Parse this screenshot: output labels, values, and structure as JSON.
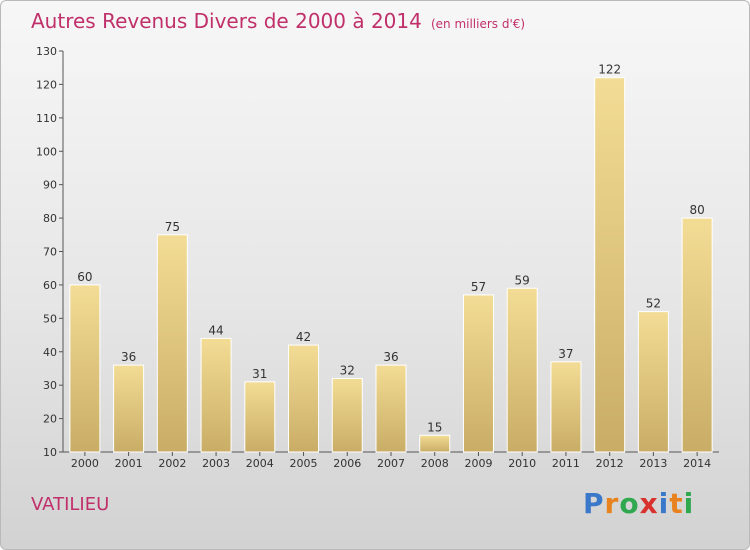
{
  "title": "Autres Revenus Divers de 2000 à 2014",
  "unit": "(en milliers d'€)",
  "place": "VATILIEU",
  "logo": {
    "letters": [
      "P",
      "r",
      "o",
      "x",
      "i",
      "t",
      "i"
    ],
    "colors": [
      "#3a78c9",
      "#e8821e",
      "#2fa84f",
      "#d9322e",
      "#3a78c9",
      "#e8821e",
      "#2fa84f"
    ]
  },
  "colors": {
    "title": "#c0306a",
    "bar_light": "#f3dc95",
    "bar_dark": "#c9ad66",
    "axis": "#555555"
  },
  "chart_data": {
    "type": "bar",
    "title": "Autres Revenus Divers de 2000 à 2014",
    "categories": [
      "2000",
      "2001",
      "2002",
      "2003",
      "2004",
      "2005",
      "2006",
      "2007",
      "2008",
      "2009",
      "2010",
      "2011",
      "2012",
      "2013",
      "2014"
    ],
    "values": [
      60,
      36,
      75,
      44,
      31,
      42,
      32,
      36,
      15,
      57,
      59,
      37,
      122,
      52,
      80
    ],
    "ylim": [
      10,
      130
    ],
    "yticks": [
      10,
      20,
      30,
      40,
      50,
      60,
      70,
      80,
      90,
      100,
      110,
      120,
      130
    ],
    "grid": false,
    "xlabel": "",
    "ylabel": ""
  }
}
